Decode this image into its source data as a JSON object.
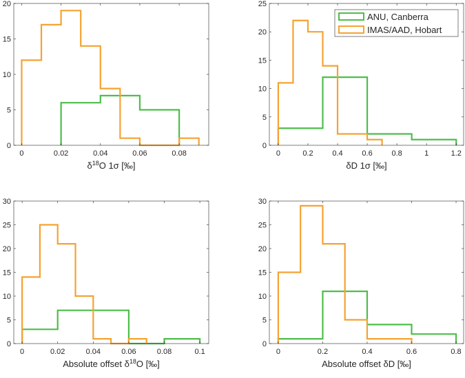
{
  "colors": {
    "ANU": "#4dbd4a",
    "IMAS": "#f5a232",
    "axis": "#262626"
  },
  "legend": {
    "placement": "top-right of panel 2",
    "entries": [
      {
        "label": "ANU, Canberra",
        "color": "#4dbd4a"
      },
      {
        "label": "IMAS/AAD, Hobart",
        "color": "#f5a232"
      }
    ]
  },
  "chart_data": [
    {
      "type": "histogram",
      "xlabel": {
        "pre": "δ",
        "sup": "18",
        "post": "O 1σ [‰]"
      },
      "xlim": [
        -0.004,
        0.095
      ],
      "ylim": [
        0,
        20
      ],
      "xticks": [
        0,
        0.02,
        0.04,
        0.06,
        0.08
      ],
      "xtick_labels": [
        "0",
        "0.02",
        "0.04",
        "0.06",
        "0.08"
      ],
      "yticks": [
        0,
        5,
        10,
        15,
        20
      ],
      "ytick_labels": [
        "0",
        "5",
        "10",
        "15",
        "20"
      ],
      "series": [
        {
          "name": "ANU, Canberra",
          "edges": [
            0.02,
            0.04,
            0.06,
            0.08
          ],
          "counts": [
            6,
            7,
            5
          ]
        },
        {
          "name": "IMAS/AAD, Hobart",
          "edges": [
            0,
            0.01,
            0.02,
            0.03,
            0.04,
            0.05,
            0.06,
            0.07,
            0.08,
            0.09
          ],
          "counts": [
            12,
            17,
            19,
            14,
            8,
            1,
            0,
            0,
            1
          ]
        }
      ]
    },
    {
      "type": "histogram",
      "xlabel": {
        "pre": "δD 1σ [‰]",
        "sup": "",
        "post": ""
      },
      "xlim": [
        -0.06,
        1.25
      ],
      "ylim": [
        0,
        25
      ],
      "xticks": [
        0,
        0.2,
        0.4,
        0.6,
        0.8,
        1,
        1.2
      ],
      "xtick_labels": [
        "0",
        "0.2",
        "0.4",
        "0.6",
        "0.8",
        "1",
        "1.2"
      ],
      "yticks": [
        0,
        5,
        10,
        15,
        20,
        25
      ],
      "ytick_labels": [
        "0",
        "5",
        "10",
        "15",
        "20",
        "25"
      ],
      "series": [
        {
          "name": "ANU, Canberra",
          "edges": [
            0,
            0.3,
            0.6,
            0.9,
            1.2
          ],
          "counts": [
            3,
            12,
            2,
            1
          ]
        },
        {
          "name": "IMAS/AAD, Hobart",
          "edges": [
            0,
            0.1,
            0.2,
            0.3,
            0.4,
            0.5,
            0.6,
            0.7
          ],
          "counts": [
            11,
            22,
            20,
            14,
            2,
            2,
            1
          ]
        }
      ]
    },
    {
      "type": "histogram",
      "xlabel": {
        "pre": "Absolute offset δ",
        "sup": "18",
        "post": "O [‰]"
      },
      "xlim": [
        -0.0047,
        0.105
      ],
      "ylim": [
        0,
        30
      ],
      "xticks": [
        0,
        0.02,
        0.04,
        0.06,
        0.08,
        0.1
      ],
      "xtick_labels": [
        "0",
        "0.02",
        "0.04",
        "0.06",
        "0.08",
        "0.1"
      ],
      "yticks": [
        0,
        5,
        10,
        15,
        20,
        25,
        30
      ],
      "ytick_labels": [
        "0",
        "5",
        "10",
        "15",
        "20",
        "25",
        "30"
      ],
      "series": [
        {
          "name": "ANU, Canberra",
          "edges": [
            0,
            0.02,
            0.04,
            0.06,
            0.08,
            0.1
          ],
          "counts": [
            3,
            7,
            7,
            0,
            1
          ]
        },
        {
          "name": "IMAS/AAD, Hobart",
          "edges": [
            0,
            0.01,
            0.02,
            0.03,
            0.04,
            0.05,
            0.06,
            0.07
          ],
          "counts": [
            14,
            25,
            21,
            10,
            1,
            0,
            1
          ]
        }
      ]
    },
    {
      "type": "histogram",
      "xlabel": {
        "pre": "Absolute offset δD [‰]",
        "sup": "",
        "post": ""
      },
      "xlim": [
        -0.04,
        0.834
      ],
      "ylim": [
        0,
        30
      ],
      "xticks": [
        0,
        0.2,
        0.4,
        0.6,
        0.8
      ],
      "xtick_labels": [
        "0",
        "0.2",
        "0.4",
        "0.6",
        "0.8"
      ],
      "yticks": [
        0,
        5,
        10,
        15,
        20,
        25,
        30
      ],
      "ytick_labels": [
        "0",
        "5",
        "10",
        "15",
        "20",
        "25",
        "30"
      ],
      "series": [
        {
          "name": "ANU, Canberra",
          "edges": [
            0,
            0.2,
            0.4,
            0.6,
            0.8
          ],
          "counts": [
            1,
            11,
            4,
            2
          ]
        },
        {
          "name": "IMAS/AAD, Hobart",
          "edges": [
            0,
            0.1,
            0.2,
            0.3,
            0.4,
            0.5,
            0.6
          ],
          "counts": [
            15,
            29,
            21,
            5,
            1,
            1
          ]
        }
      ]
    }
  ]
}
